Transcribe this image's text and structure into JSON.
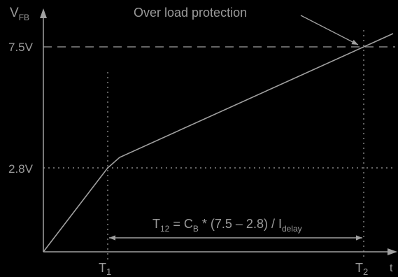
{
  "colors": {
    "background": "#000000",
    "foreground": "#a0a0a0",
    "text": "#9a9a9a"
  },
  "labels": {
    "y_axis_main": "V",
    "y_axis_sub": "FB",
    "x_axis": "t",
    "callout": "Over load protection",
    "y_tick_high": "7.5V",
    "y_tick_low": "2.8V",
    "t1_main": "T",
    "t1_sub": "1",
    "t2_main": "T",
    "t2_sub": "2",
    "formula_t": "T",
    "formula_t_sub": "12",
    "formula_mid": " = C",
    "formula_c_sub": "B",
    "formula_rest": " * (7.5 – 2.8) / I",
    "formula_i_sub": "delay"
  }
}
